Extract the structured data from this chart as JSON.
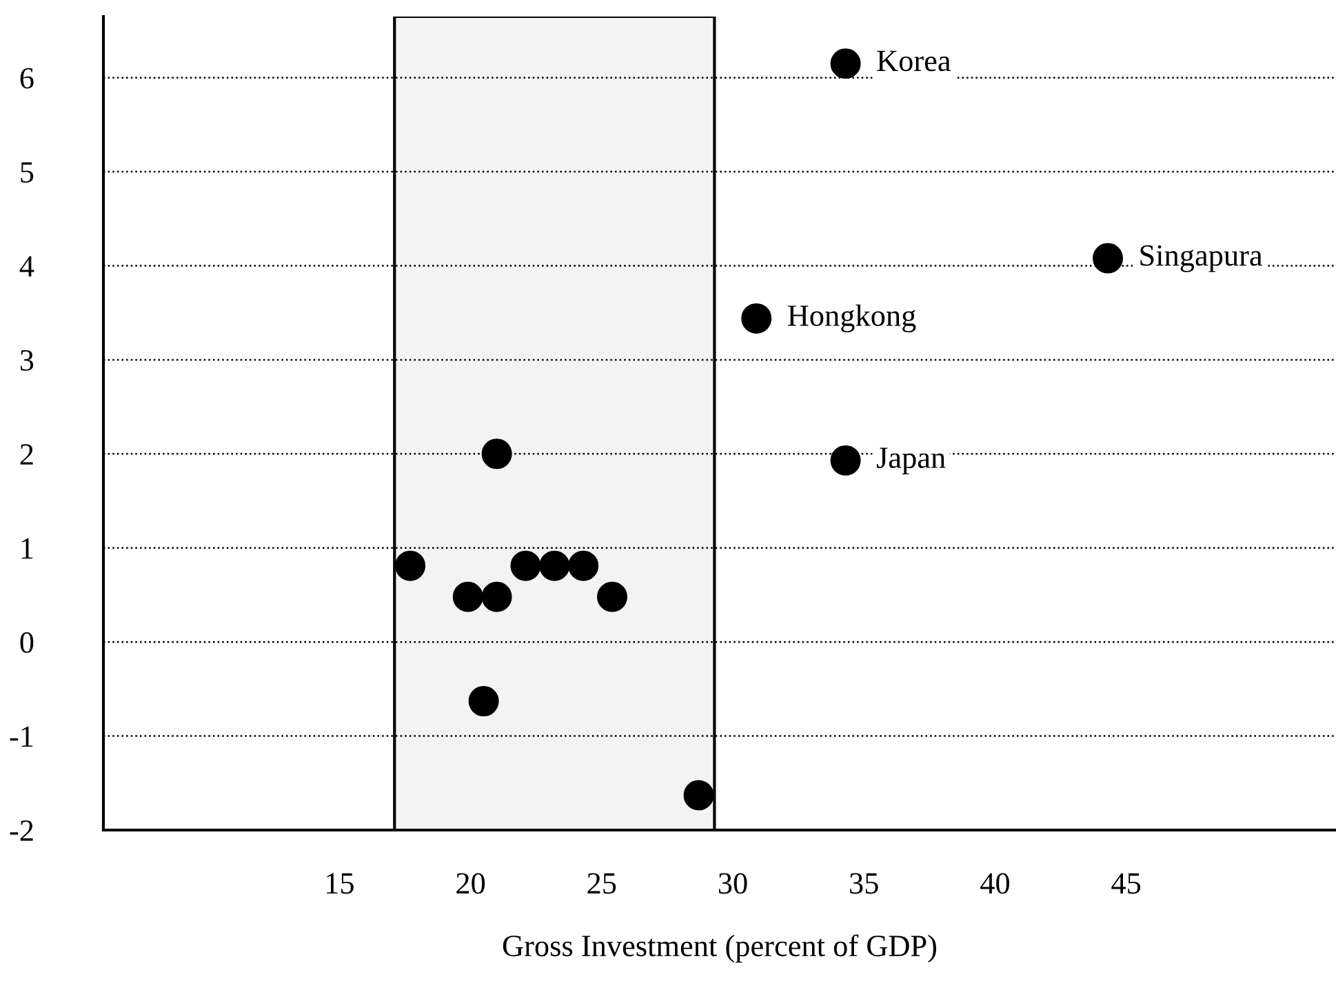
{
  "chart_data": {
    "type": "scatter",
    "xlabel": "Gross Investment (percent of GDP)",
    "x": [
      34.3,
      44.3,
      30.9,
      34.3,
      17.7,
      19.9,
      21.0,
      21.0,
      22.1,
      23.2,
      24.3,
      25.4,
      20.5,
      28.7
    ],
    "values": [
      6.15,
      4.08,
      3.44,
      1.93,
      0.81,
      0.48,
      0.48,
      2.0,
      0.81,
      0.81,
      0.81,
      0.48,
      -0.63,
      -1.63
    ],
    "color": "#000000",
    "marker": "circle",
    "xlim": [
      6,
      53
    ],
    "xticks": [
      15,
      20,
      25,
      30,
      35,
      40,
      45
    ],
    "ylim": [
      -2,
      6.65
    ],
    "yticks": [
      -2,
      -1,
      0,
      1,
      2,
      3,
      4,
      5,
      6
    ],
    "grid": "y",
    "bands": [
      {
        "axis": "x",
        "from": 17.1,
        "to": 29.3,
        "color": "#f3f3f3"
      }
    ],
    "annotations": [
      {
        "text": "Korea",
        "x": 34.3,
        "y": 6.15
      },
      {
        "text": "Singapura",
        "x": 44.3,
        "y": 4.08
      },
      {
        "text": "Hongkong",
        "x": 30.9,
        "y": 3.44
      },
      {
        "text": "Japan",
        "x": 34.3,
        "y": 1.93
      }
    ]
  }
}
